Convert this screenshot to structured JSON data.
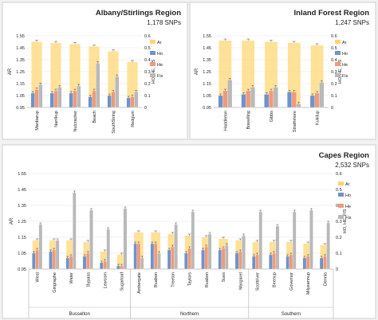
{
  "colors": {
    "Ar": "#ffd46b",
    "Ho": "#6f93c9",
    "He": "#ef9a7a",
    "Fis": "#b9b9b9"
  },
  "chart_data": [
    {
      "type": "bar",
      "title": "Albany/Stirlings Region",
      "subtitle": "1,178 SNPs",
      "ylabel_left": "AR",
      "ylabel_right": "HO, HE, FIS",
      "yticks_left": [
        "0.95",
        "1.05",
        "1.15",
        "1.25",
        "1.35",
        "1.45",
        "1.55"
      ],
      "yticks_right": [
        "0",
        "0.1",
        "0.2",
        "0.3",
        "0.4",
        "0.5",
        "0.6"
      ],
      "ylim_left": [
        0.95,
        1.55
      ],
      "ylim_right": [
        0,
        0.6
      ],
      "legend": [
        "Ar",
        "Ho",
        "He",
        "Fis"
      ],
      "categories": [
        "Manbarup",
        "Narrikup",
        "Nutcracker",
        "Beach",
        "SouthString",
        "Redgum"
      ],
      "series": [
        {
          "name": "Ar",
          "axis": "left",
          "values": [
            1.5,
            1.49,
            1.48,
            1.46,
            1.42,
            1.33
          ]
        },
        {
          "name": "Ho",
          "axis": "right",
          "values": [
            0.12,
            0.12,
            0.12,
            0.09,
            0.1,
            0.08
          ]
        },
        {
          "name": "He",
          "axis": "right",
          "values": [
            0.15,
            0.14,
            0.14,
            0.14,
            0.13,
            0.09
          ]
        },
        {
          "name": "Fis",
          "axis": "right",
          "values": [
            0.19,
            0.17,
            0.18,
            0.37,
            0.26,
            0.13
          ]
        }
      ]
    },
    {
      "type": "bar",
      "title": "Inland Forest Region",
      "subtitle": "1,247 SNPs",
      "ylabel_left": "AR",
      "ylabel_right": "HO, HE, FIS",
      "yticks_left": [
        "0.95",
        "1.05",
        "1.15",
        "1.25",
        "1.35",
        "1.45",
        "1.55"
      ],
      "yticks_right": [
        "0",
        "0.1",
        "0.2",
        "0.3",
        "0.4",
        "0.5",
        "0.6"
      ],
      "ylim_left": [
        0.95,
        1.55
      ],
      "ylim_right": [
        0,
        0.6
      ],
      "legend": [
        "Ar",
        "Ho",
        "He",
        "Fis"
      ],
      "categories": [
        "Haddleton",
        "Bowelling",
        "Gibbs",
        "Strathmore",
        "Kukilup"
      ],
      "series": [
        {
          "name": "Ar",
          "axis": "left",
          "values": [
            1.51,
            1.51,
            1.5,
            1.49,
            1.47
          ]
        },
        {
          "name": "Ho",
          "axis": "right",
          "values": [
            0.1,
            0.11,
            0.11,
            0.13,
            0.1
          ]
        },
        {
          "name": "He",
          "axis": "right",
          "values": [
            0.14,
            0.14,
            0.14,
            0.13,
            0.12
          ]
        },
        {
          "name": "Fis",
          "axis": "right",
          "values": [
            0.23,
            0.17,
            0.17,
            0.03,
            0.21
          ]
        }
      ]
    },
    {
      "type": "bar",
      "title": "Capes Region",
      "subtitle": "2,532 SNPs",
      "ylabel_left": "AR",
      "ylabel_right": "HO, HE, FIS",
      "yticks_left": [
        "0.95",
        "1.05",
        "1.15",
        "1.25",
        "1.35",
        "1.45",
        "1.55"
      ],
      "yticks_right": [
        "0",
        "0.1",
        "0.2",
        "0.3",
        "0.4",
        "0.5",
        "0.6"
      ],
      "ylim_left": [
        0.95,
        1.55
      ],
      "ylim_right": [
        0,
        0.6
      ],
      "legend": [
        "Ar",
        "Ho",
        "He",
        "Fis"
      ],
      "categories": [
        "West",
        "Gingraphe",
        "Water",
        "Bypass",
        "Lewcom",
        "Sugarloaf",
        "Ambergate",
        "Ruabon",
        "Treeton",
        "Taylors",
        "Ruabon",
        "Sues",
        "Margaret",
        "Scottriver",
        "Beenup",
        "Governor",
        "Milyeannup",
        "Dennis"
      ],
      "groups": [
        {
          "name": "Busselton",
          "count": 6
        },
        {
          "name": "Northern",
          "count": 7
        },
        {
          "name": "Southern",
          "count": 5
        }
      ],
      "series": [
        {
          "name": "Ar",
          "axis": "left",
          "values": [
            1.13,
            1.13,
            1.13,
            1.12,
            1.06,
            1.04,
            1.18,
            1.18,
            1.17,
            1.16,
            1.15,
            1.14,
            1.13,
            1.12,
            1.12,
            1.12,
            1.11,
            1.1
          ]
        },
        {
          "name": "Ho",
          "axis": "right",
          "values": [
            0.1,
            0.11,
            0.07,
            0.08,
            0.04,
            0.02,
            0.16,
            0.16,
            0.12,
            0.1,
            0.12,
            0.12,
            0.1,
            0.08,
            0.09,
            0.08,
            0.07,
            0.07
          ]
        },
        {
          "name": "He",
          "axis": "right",
          "values": [
            0.12,
            0.12,
            0.08,
            0.1,
            0.05,
            0.02,
            0.16,
            0.16,
            0.14,
            0.13,
            0.14,
            0.13,
            0.11,
            0.09,
            0.1,
            0.09,
            0.08,
            0.08
          ]
        },
        {
          "name": "Fis",
          "axis": "right",
          "values": [
            0.28,
            0.18,
            0.48,
            0.37,
            0.25,
            0.38,
            0.07,
            0.1,
            0.28,
            0.36,
            0.22,
            0.15,
            0.21,
            0.36,
            0.27,
            0.36,
            0.37,
            0.29
          ]
        }
      ]
    }
  ]
}
